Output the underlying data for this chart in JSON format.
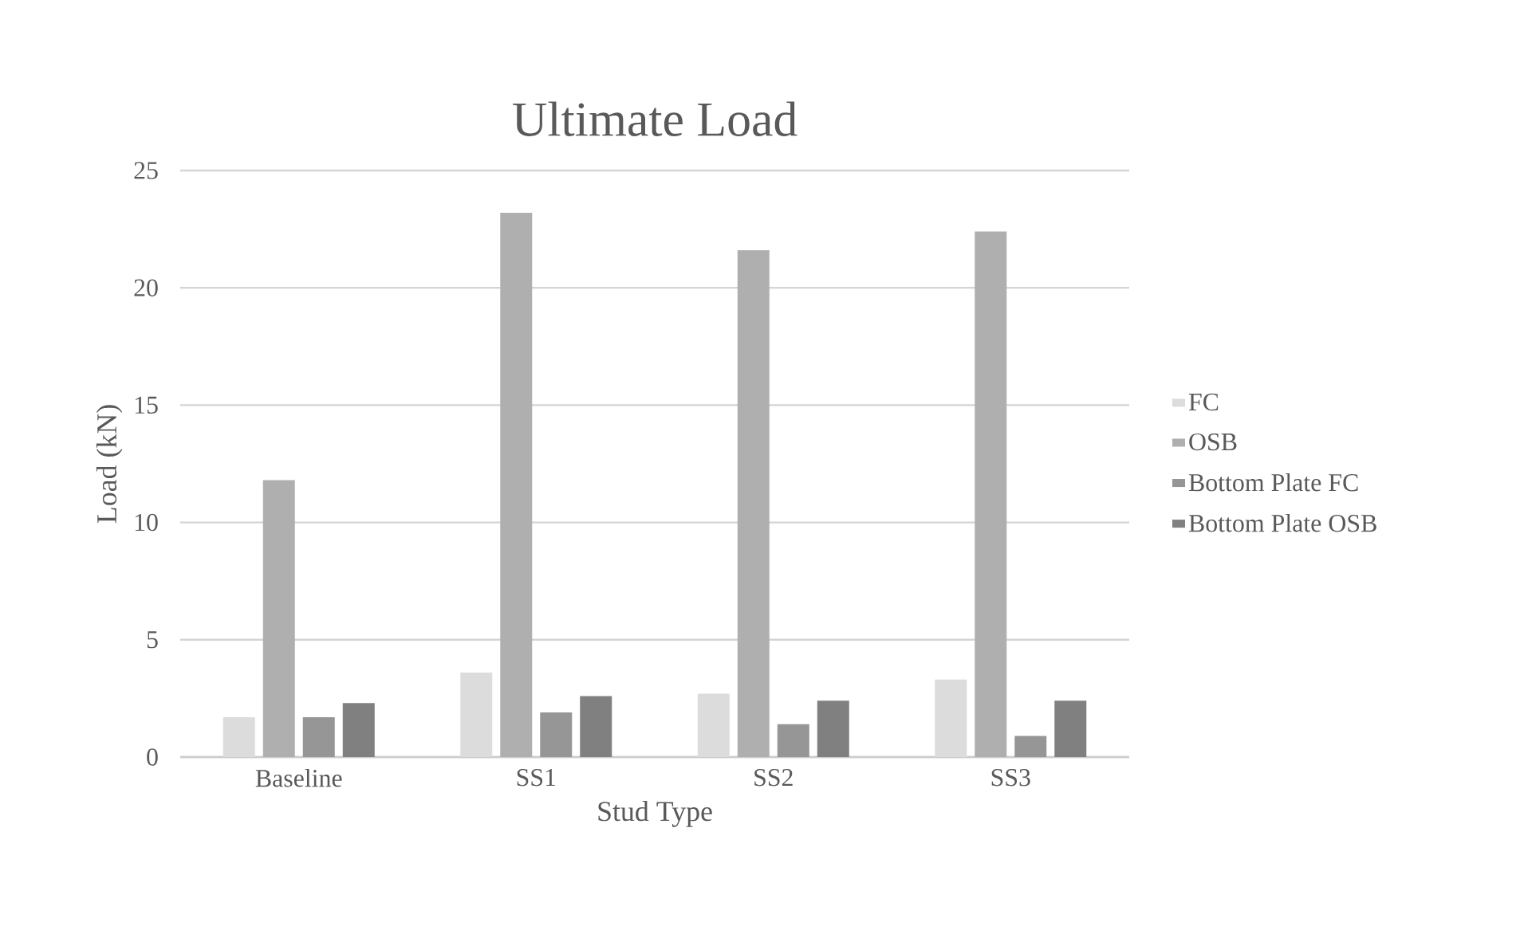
{
  "chart_data": {
    "type": "bar",
    "title": "Ultimate Load",
    "xlabel": "Stud Type",
    "ylabel": "Load (kN)",
    "categories": [
      "Baseline",
      "SS1",
      "SS2",
      "SS3"
    ],
    "series": [
      {
        "name": "FC",
        "color": "#dcdcdc",
        "values": [
          1.7,
          3.6,
          2.7,
          3.3
        ]
      },
      {
        "name": "OSB",
        "color": "#afafaf",
        "values": [
          11.8,
          23.2,
          21.6,
          22.4
        ]
      },
      {
        "name": "Bottom Plate FC",
        "color": "#969696",
        "values": [
          1.7,
          1.9,
          1.4,
          0.9
        ]
      },
      {
        "name": "Bottom Plate OSB",
        "color": "#808080",
        "values": [
          2.3,
          2.6,
          2.4,
          2.4
        ]
      }
    ],
    "ylim": [
      0,
      25
    ],
    "yticks": [
      0,
      5,
      10,
      15,
      20,
      25
    ],
    "grid": "y",
    "legend": "right"
  }
}
